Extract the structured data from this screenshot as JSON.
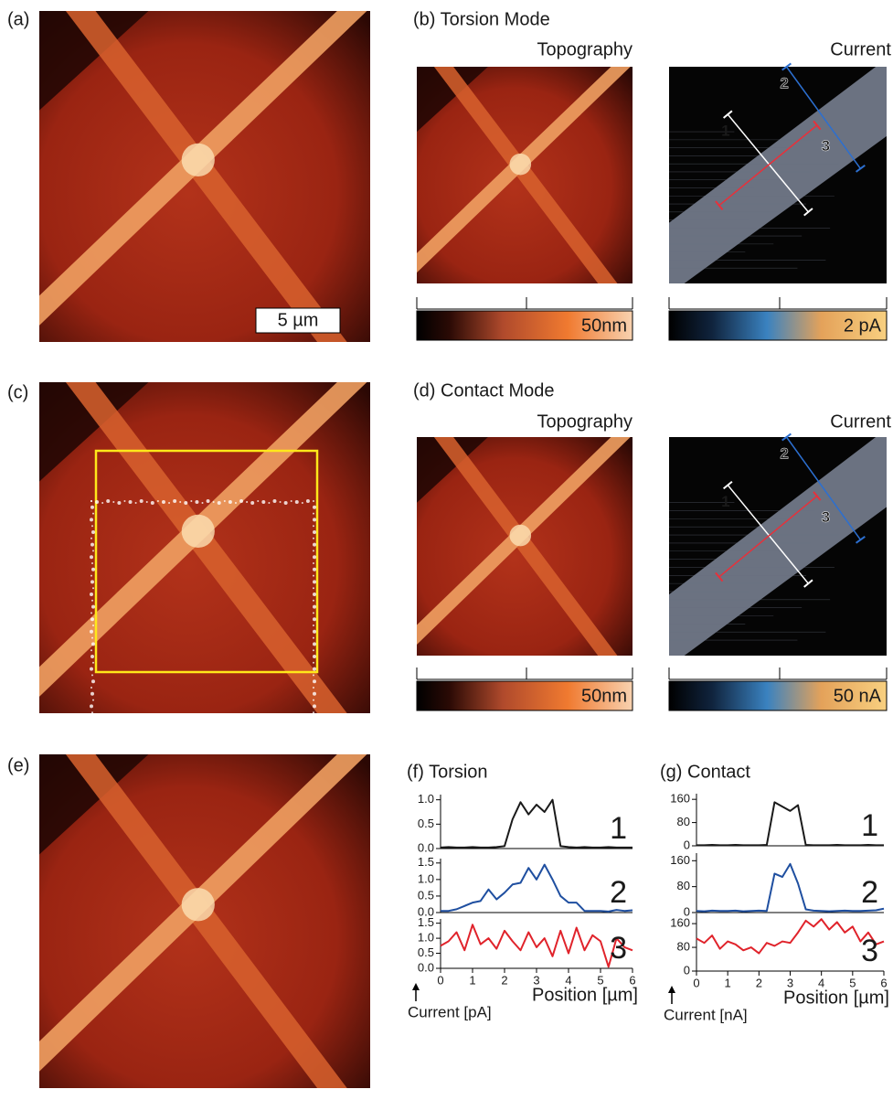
{
  "panels": {
    "a": "(a)",
    "b": "(b) Torsion Mode",
    "c": "(c)",
    "d": "(d) Contact Mode",
    "e": "(e)",
    "f": "(f) Torsion",
    "g": "(g) Contact"
  },
  "image_titles": {
    "b_topography": "Topography",
    "b_current": "Current",
    "d_topography": "Topography",
    "d_current": "Current"
  },
  "scale_bar": "5 µm",
  "colorbars": {
    "b_topography": "50nm",
    "b_current": "2 pA",
    "d_topography": "50nm",
    "d_current": "50 nA"
  },
  "profile_markers": {
    "b": [
      "1",
      "2",
      "3"
    ],
    "d": [
      "1",
      "2",
      "3"
    ]
  },
  "chart_data": [
    {
      "type": "line",
      "x": [
        0,
        0.25,
        0.5,
        0.75,
        1,
        1.25,
        1.5,
        1.75,
        2,
        2.25,
        2.5,
        2.75,
        3,
        3.25,
        3.5,
        3.75,
        4,
        4.25,
        4.5,
        4.75,
        5,
        5.25,
        5.5,
        5.75,
        6
      ],
      "series": [
        {
          "name": "1",
          "color": "#1a1a1a",
          "values": [
            0.02,
            0.03,
            0.02,
            0.02,
            0.03,
            0.02,
            0.02,
            0.03,
            0.05,
            0.6,
            0.95,
            0.7,
            0.9,
            0.75,
            1.0,
            0.05,
            0.03,
            0.02,
            0.03,
            0.02,
            0.02,
            0.03,
            0.02,
            0.02,
            0.02
          ]
        }
      ],
      "xlim": [
        0,
        6
      ],
      "ylim": [
        0,
        1.05
      ],
      "yticks": [
        {
          "value": 0,
          "label": "0.0"
        },
        {
          "value": 0.5,
          "label": "0.5"
        },
        {
          "value": 1,
          "label": "1.0"
        }
      ]
    },
    {
      "type": "line",
      "x": [
        0,
        0.25,
        0.5,
        0.75,
        1,
        1.25,
        1.5,
        1.75,
        2,
        2.25,
        2.5,
        2.75,
        3,
        3.25,
        3.5,
        3.75,
        4,
        4.25,
        4.5,
        4.75,
        5,
        5.25,
        5.5,
        5.75,
        6
      ],
      "series": [
        {
          "name": "2",
          "color": "#1f4fa0",
          "values": [
            0.05,
            0.05,
            0.1,
            0.2,
            0.3,
            0.35,
            0.7,
            0.4,
            0.6,
            0.85,
            0.9,
            1.35,
            1.0,
            1.45,
            1.0,
            0.5,
            0.3,
            0.3,
            0.05,
            0.05,
            0.05,
            0.03,
            0.08,
            0.05,
            0.07
          ]
        }
      ],
      "xlim": [
        0,
        6
      ],
      "ylim": [
        0,
        1.55
      ],
      "yticks": [
        {
          "value": 0,
          "label": "0.0"
        },
        {
          "value": 0.5,
          "label": "0.5"
        },
        {
          "value": 1,
          "label": "1.0"
        },
        {
          "value": 1.5,
          "label": "1.5"
        }
      ]
    },
    {
      "type": "line",
      "x": [
        0,
        0.25,
        0.5,
        0.75,
        1,
        1.25,
        1.5,
        1.75,
        2,
        2.25,
        2.5,
        2.75,
        3,
        3.25,
        3.5,
        3.75,
        4,
        4.25,
        4.5,
        4.75,
        5,
        5.25,
        5.5,
        5.75,
        6
      ],
      "series": [
        {
          "name": "3",
          "color": "#e0232b",
          "values": [
            0.75,
            0.9,
            1.2,
            0.6,
            1.45,
            0.8,
            1.0,
            0.65,
            1.25,
            0.9,
            0.6,
            1.2,
            0.7,
            1.0,
            0.4,
            1.25,
            0.5,
            1.35,
            0.6,
            1.1,
            0.9,
            0.05,
            1.0,
            0.7,
            0.6
          ]
        }
      ],
      "xlim": [
        0,
        6
      ],
      "xticks": [
        0,
        1,
        2,
        3,
        4,
        5,
        6
      ],
      "ylim": [
        0,
        1.55
      ],
      "yticks": [
        {
          "value": 0,
          "label": "0.0"
        },
        {
          "value": 0.5,
          "label": "0.5"
        },
        {
          "value": 1,
          "label": "1.0"
        },
        {
          "value": 1.5,
          "label": "1.5"
        }
      ],
      "x_label": "Position [µm]",
      "y_label": "Current [pA]"
    },
    {
      "type": "line",
      "x": [
        0,
        0.25,
        0.5,
        0.75,
        1,
        1.25,
        1.5,
        1.75,
        2,
        2.25,
        2.5,
        2.75,
        3,
        3.25,
        3.5,
        3.75,
        4,
        4.25,
        4.5,
        4.75,
        5,
        5.25,
        5.5,
        5.75,
        6
      ],
      "series": [
        {
          "name": "1",
          "color": "#1a1a1a",
          "values": [
            2,
            2,
            3,
            2,
            2,
            3,
            2,
            2,
            2,
            3,
            150,
            135,
            120,
            140,
            3,
            2,
            2,
            2,
            3,
            2,
            2,
            2,
            3,
            2,
            2
          ]
        }
      ],
      "xlim": [
        0,
        6
      ],
      "ylim": [
        0,
        170
      ],
      "yticks": [
        0,
        80,
        160
      ]
    },
    {
      "type": "line",
      "x": [
        0,
        0.25,
        0.5,
        0.75,
        1,
        1.25,
        1.5,
        1.75,
        2,
        2.25,
        2.5,
        2.75,
        3,
        3.25,
        3.5,
        3.75,
        4,
        4.25,
        4.5,
        4.75,
        5,
        5.25,
        5.5,
        5.75,
        6
      ],
      "series": [
        {
          "name": "2",
          "color": "#1f4fa0",
          "values": [
            5,
            4,
            6,
            5,
            5,
            6,
            4,
            5,
            6,
            5,
            120,
            110,
            150,
            90,
            10,
            6,
            5,
            4,
            5,
            6,
            5,
            5,
            6,
            7,
            12
          ]
        }
      ],
      "xlim": [
        0,
        6
      ],
      "ylim": [
        0,
        175
      ],
      "yticks": [
        0,
        80,
        160
      ]
    },
    {
      "type": "line",
      "x": [
        0,
        0.25,
        0.5,
        0.75,
        1,
        1.25,
        1.5,
        1.75,
        2,
        2.25,
        2.5,
        2.75,
        3,
        3.25,
        3.5,
        3.75,
        4,
        4.25,
        4.5,
        4.75,
        5,
        5.25,
        5.5,
        5.75,
        6
      ],
      "series": [
        {
          "name": "3",
          "color": "#e0232b",
          "values": [
            110,
            95,
            120,
            75,
            100,
            90,
            70,
            80,
            60,
            95,
            85,
            100,
            95,
            130,
            170,
            150,
            175,
            140,
            165,
            130,
            150,
            100,
            130,
            90,
            100
          ]
        }
      ],
      "xlim": [
        0,
        6
      ],
      "xticks": [
        0,
        1,
        2,
        3,
        4,
        5,
        6
      ],
      "ylim": [
        0,
        185
      ],
      "yticks": [
        0,
        80,
        160
      ],
      "x_label": "Position [µm]",
      "y_label": "Current [nA]"
    }
  ]
}
